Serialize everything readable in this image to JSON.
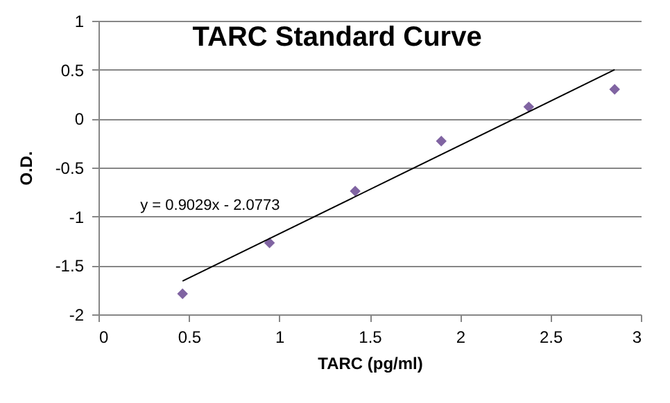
{
  "chart_data": {
    "type": "scatter",
    "title": "TARC Standard Curve",
    "xlabel": "TARC (pg/ml)",
    "ylabel": "O.D.",
    "x": [
      0.465,
      0.946,
      1.42,
      1.896,
      2.38,
      2.855
    ],
    "series": [
      {
        "color": "#8064a2",
        "marker": "diamond",
        "values": [
          -1.79,
          -1.27,
          -0.74,
          -0.23,
          0.12,
          0.3
        ]
      },
      {
        "type": "line",
        "color": "#000000",
        "marker": "none",
        "x": [
          0.465,
          2.855
        ],
        "values": [
          -1.66,
          0.5
        ]
      }
    ],
    "annotations": [
      "y = 0.9029x - 2.0773"
    ],
    "xlim": [
      0,
      3
    ],
    "xticks": [
      0,
      0.5,
      1,
      1.5,
      2,
      2.5,
      3
    ],
    "ylim": [
      -2,
      1
    ],
    "yticks": [
      -2,
      -1.5,
      -1,
      -0.5,
      0,
      0.5,
      1
    ],
    "grid": "y"
  }
}
